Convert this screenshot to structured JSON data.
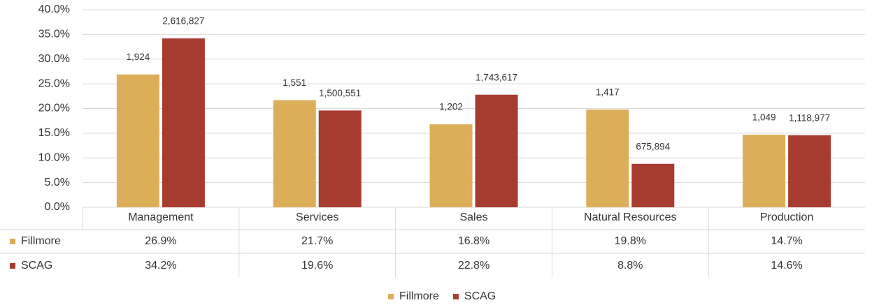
{
  "chart_data": {
    "type": "bar",
    "categories": [
      "Management",
      "Services",
      "Sales",
      "Natural Resources",
      "Production"
    ],
    "series": [
      {
        "name": "Fillmore",
        "color": "#dcae5a",
        "values": [
          26.9,
          21.7,
          16.8,
          19.8,
          14.7
        ],
        "value_labels": [
          "26.9%",
          "21.7%",
          "16.8%",
          "19.8%",
          "14.7%"
        ],
        "data_labels": [
          "1,924",
          "1,551",
          "1,202",
          "1,417",
          "1,049"
        ]
      },
      {
        "name": "SCAG",
        "color": "#a83b30",
        "values": [
          34.2,
          19.6,
          22.8,
          8.8,
          14.6
        ],
        "value_labels": [
          "34.2%",
          "19.6%",
          "22.8%",
          "8.8%",
          "14.6%"
        ],
        "data_labels": [
          "2,616,827",
          "1,500,551",
          "1,743,617",
          "675,894",
          "1,118,977"
        ]
      }
    ],
    "ylim": [
      0,
      40
    ],
    "yticks": [
      {
        "value": 0,
        "label": "0.0%"
      },
      {
        "value": 5,
        "label": "5.0%"
      },
      {
        "value": 10,
        "label": "10.0%"
      },
      {
        "value": 15,
        "label": "15.0%"
      },
      {
        "value": 20,
        "label": "20.0%"
      },
      {
        "value": 25,
        "label": "25.0%"
      },
      {
        "value": 30,
        "label": "30.0%"
      },
      {
        "value": 35,
        "label": "35.0%"
      },
      {
        "value": 40,
        "label": "40.0%"
      }
    ],
    "grid": true,
    "legend": "bottom"
  }
}
